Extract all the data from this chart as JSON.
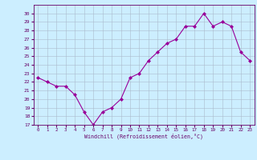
{
  "x": [
    0,
    1,
    2,
    3,
    4,
    5,
    6,
    7,
    8,
    9,
    10,
    11,
    12,
    13,
    14,
    15,
    16,
    17,
    18,
    19,
    20,
    21,
    22,
    23
  ],
  "y": [
    22.5,
    22.0,
    21.5,
    21.5,
    20.5,
    18.5,
    17.0,
    18.5,
    19.0,
    20.0,
    22.5,
    23.0,
    24.5,
    25.5,
    26.5,
    27.0,
    28.5,
    28.5,
    30.0,
    28.5,
    29.0,
    28.5,
    25.5,
    24.5
  ],
  "line_color": "#990099",
  "marker": "D",
  "marker_size": 2,
  "bg_color": "#cceeff",
  "grid_color": "#aabbcc",
  "xlabel": "Windchill (Refroidissement éolien,°C)",
  "ylim": [
    17,
    31
  ],
  "yticks": [
    17,
    18,
    19,
    20,
    21,
    22,
    23,
    24,
    25,
    26,
    27,
    28,
    29,
    30
  ],
  "xlim": [
    -0.5,
    23.5
  ],
  "xticks": [
    0,
    1,
    2,
    3,
    4,
    5,
    6,
    7,
    8,
    9,
    10,
    11,
    12,
    13,
    14,
    15,
    16,
    17,
    18,
    19,
    20,
    21,
    22,
    23
  ],
  "tick_color": "#660066",
  "spine_color": "#660066"
}
